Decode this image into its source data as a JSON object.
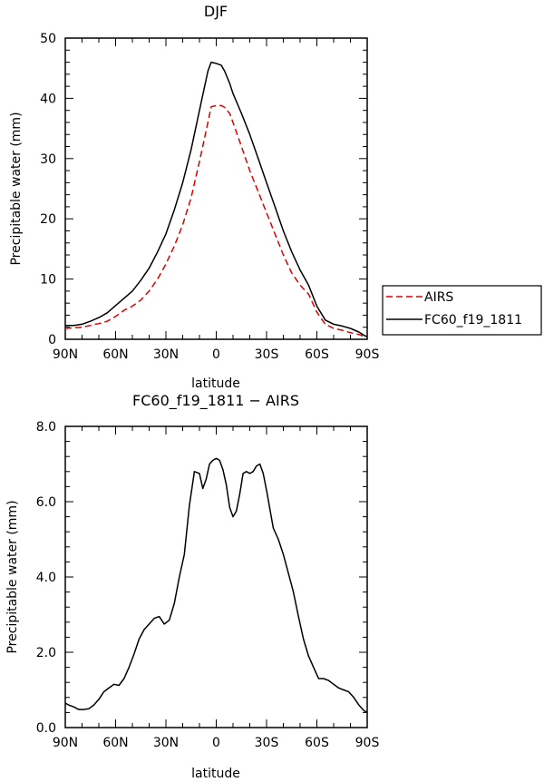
{
  "chart_data": [
    {
      "type": "line",
      "title": "DJF",
      "xlabel": "latitude",
      "ylabel": "Precipitable water (mm)",
      "xlim": [
        -90,
        90
      ],
      "ylim": [
        0,
        50
      ],
      "x_tick_values": [
        -90,
        -60,
        -30,
        0,
        30,
        60,
        90
      ],
      "x_tick_labels": [
        "90N",
        "60N",
        "30N",
        "0",
        "30S",
        "60S",
        "90S"
      ],
      "y_ticks": [
        "0",
        "10",
        "20",
        "30",
        "40",
        "50"
      ],
      "y_tick_values": [
        0,
        10,
        20,
        30,
        40,
        50
      ],
      "legend_position": "right",
      "series": [
        {
          "name": "AIRS",
          "color": "#dd0000",
          "dash": "dashed",
          "x": [
            -90,
            -85,
            -80,
            -75,
            -70,
            -65,
            -60,
            -55,
            -50,
            -45,
            -40,
            -35,
            -30,
            -25,
            -20,
            -15,
            -10,
            -5,
            -3,
            0,
            3,
            5,
            8,
            10,
            15,
            20,
            25,
            30,
            35,
            40,
            45,
            50,
            55,
            60,
            65,
            70,
            75,
            80,
            85,
            88,
            90
          ],
          "y": [
            1.8,
            1.9,
            2.0,
            2.3,
            2.6,
            3.0,
            3.8,
            4.8,
            5.5,
            6.5,
            8.0,
            10.0,
            12.5,
            15.5,
            19.0,
            23.5,
            29.5,
            36.0,
            38.6,
            38.8,
            38.8,
            38.5,
            37.5,
            36.0,
            32.0,
            28.0,
            24.5,
            21.0,
            17.5,
            14.0,
            11.0,
            9.0,
            7.5,
            4.5,
            2.5,
            1.8,
            1.5,
            1.1,
            0.8,
            0.5,
            0.4
          ]
        },
        {
          "name": "FC60_f19_1811",
          "color": "#000000",
          "dash": "solid",
          "x": [
            -90,
            -85,
            -80,
            -75,
            -70,
            -65,
            -60,
            -55,
            -50,
            -45,
            -40,
            -35,
            -30,
            -25,
            -20,
            -15,
            -10,
            -5,
            -3,
            0,
            3,
            5,
            8,
            10,
            15,
            20,
            25,
            30,
            35,
            40,
            45,
            50,
            55,
            60,
            65,
            70,
            75,
            80,
            85,
            88,
            90
          ],
          "y": [
            2.3,
            2.3,
            2.5,
            3.0,
            3.6,
            4.4,
            5.6,
            6.8,
            8.0,
            9.8,
            11.8,
            14.5,
            17.5,
            21.5,
            26.0,
            31.5,
            38.0,
            44.5,
            46.0,
            45.8,
            45.5,
            44.5,
            42.5,
            40.8,
            37.5,
            34.0,
            30.0,
            26.0,
            22.0,
            18.0,
            14.5,
            11.5,
            9.0,
            5.5,
            3.2,
            2.5,
            2.2,
            1.8,
            1.2,
            0.7,
            0.4
          ]
        }
      ]
    },
    {
      "type": "line",
      "title": "FC60_f19_1811 − AIRS",
      "xlabel": "latitude",
      "ylabel": "Precipitable water (mm)",
      "xlim": [
        -90,
        90
      ],
      "ylim": [
        0,
        8
      ],
      "x_tick_values": [
        -90,
        -60,
        -30,
        0,
        30,
        60,
        90
      ],
      "x_tick_labels": [
        "90N",
        "60N",
        "30N",
        "0",
        "30S",
        "60S",
        "90S"
      ],
      "y_ticks": [
        "0.0",
        "2.0",
        "4.0",
        "6.0",
        "8.0"
      ],
      "y_tick_values": [
        0,
        2,
        4,
        6,
        8
      ],
      "series": [
        {
          "color": "#000000",
          "dash": "solid",
          "x": [
            -90,
            -88,
            -85,
            -82,
            -79,
            -76,
            -73,
            -70,
            -67,
            -64,
            -61,
            -58,
            -55,
            -52,
            -49,
            -46,
            -43,
            -40,
            -37,
            -34,
            -31,
            -28,
            -25,
            -22,
            -19,
            -16,
            -13,
            -10,
            -8,
            -6,
            -4,
            -2,
            0,
            2,
            4,
            6,
            8,
            10,
            12,
            14,
            16,
            18,
            20,
            22,
            24,
            26,
            28,
            30,
            32,
            34,
            37,
            40,
            43,
            46,
            49,
            52,
            55,
            58,
            61,
            64,
            67,
            70,
            73,
            76,
            79,
            82,
            85,
            88,
            90
          ],
          "y": [
            0.65,
            0.6,
            0.55,
            0.48,
            0.48,
            0.5,
            0.6,
            0.75,
            0.95,
            1.05,
            1.15,
            1.12,
            1.3,
            1.6,
            1.95,
            2.35,
            2.6,
            2.75,
            2.9,
            2.95,
            2.75,
            2.85,
            3.3,
            4.0,
            4.6,
            5.9,
            6.8,
            6.75,
            6.35,
            6.6,
            7.0,
            7.1,
            7.15,
            7.1,
            6.85,
            6.45,
            5.85,
            5.6,
            5.75,
            6.2,
            6.75,
            6.8,
            6.75,
            6.8,
            6.95,
            7.0,
            6.75,
            6.3,
            5.8,
            5.3,
            5.0,
            4.6,
            4.1,
            3.6,
            2.95,
            2.35,
            1.9,
            1.6,
            1.3,
            1.3,
            1.25,
            1.15,
            1.05,
            1.0,
            0.95,
            0.8,
            0.6,
            0.45,
            0.4
          ]
        }
      ]
    }
  ]
}
